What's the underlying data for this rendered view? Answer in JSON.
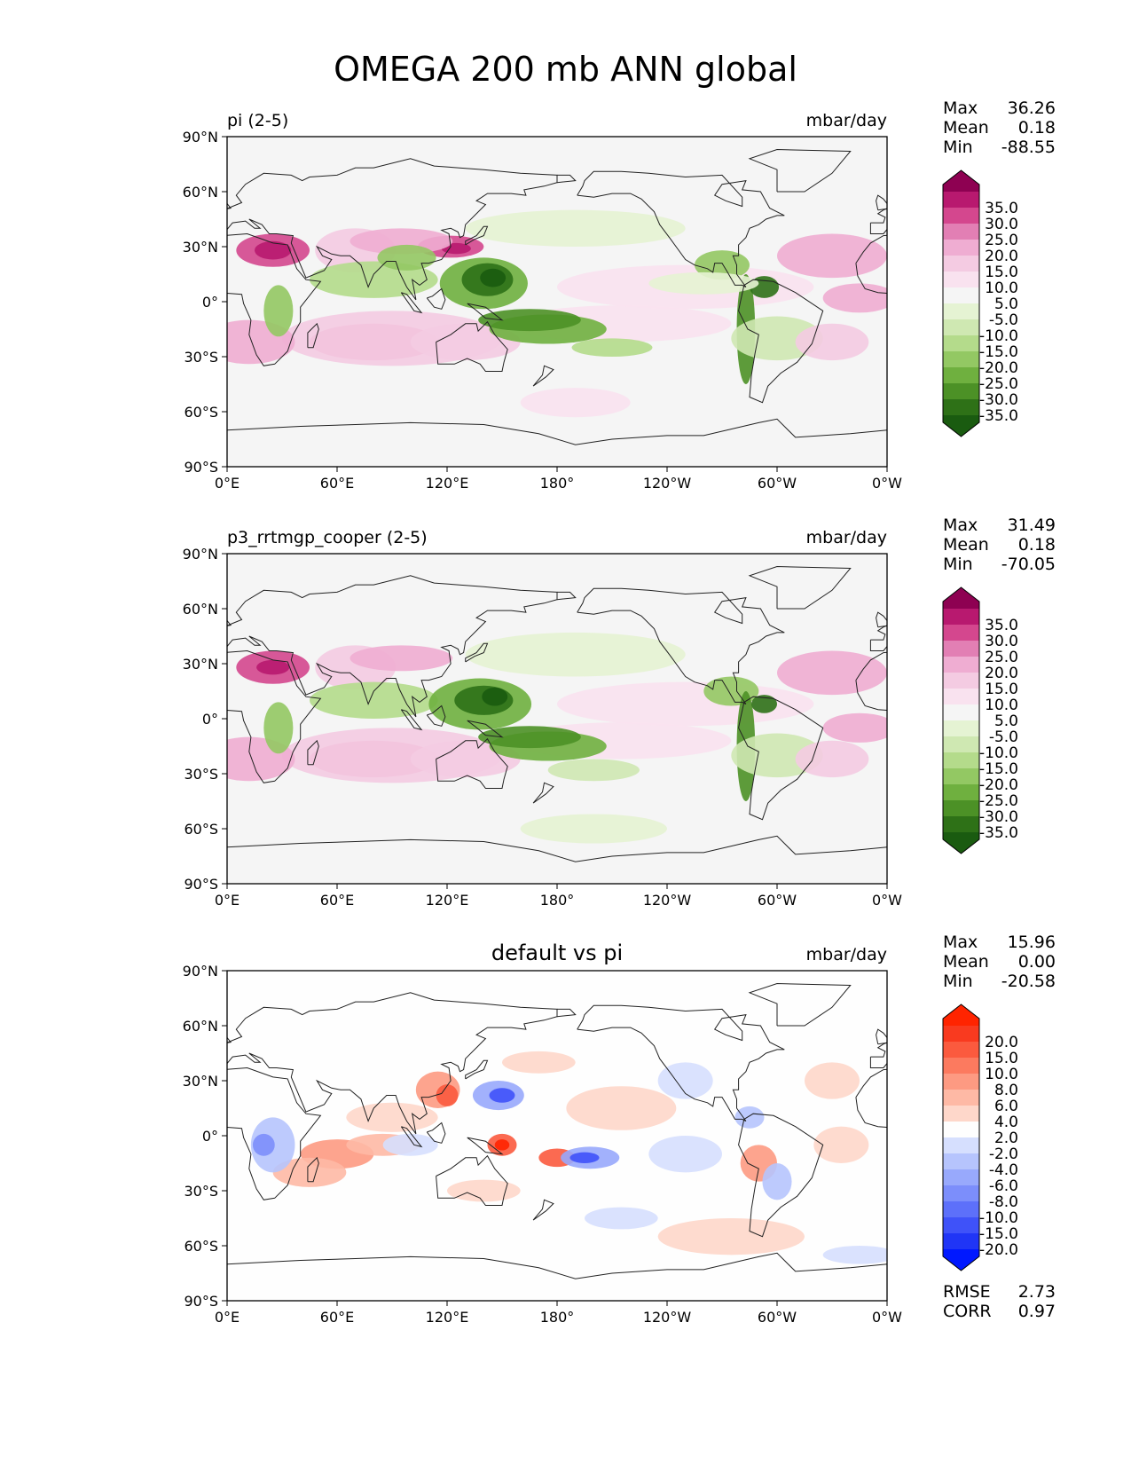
{
  "figure": {
    "title": "OMEGA 200 mb ANN global"
  },
  "axes": {
    "lon_ticks": [
      "0°E",
      "60°E",
      "120°E",
      "180°",
      "120°W",
      "60°W",
      "0°W"
    ],
    "lat_ticks": [
      "90°N",
      "60°N",
      "30°N",
      "0°",
      "30°S",
      "60°S",
      "90°S"
    ]
  },
  "stat_labels": {
    "max": "Max",
    "mean": "Mean",
    "min": "Min",
    "rmse": "RMSE",
    "corr": "CORR"
  },
  "chart_data": [
    {
      "type": "heatmap",
      "title": "pi (2-5)",
      "units": "mbar/day",
      "xlim": [
        0,
        360
      ],
      "ylim": [
        -90,
        90
      ],
      "stats": {
        "max": "36.26",
        "mean": "0.18",
        "min": "-88.55"
      },
      "colorbar_labels": [
        "35.0",
        "30.0",
        "25.0",
        "20.0",
        "15.0",
        "10.0",
        "5.0",
        "-5.0",
        "-10.0",
        "-15.0",
        "-20.0",
        "-25.0",
        "-30.0",
        "-35.0"
      ],
      "colorbar_colors": [
        "#8e0152",
        "#b8196f",
        "#d4478e",
        "#e27fb4",
        "#efadd2",
        "#f4cbe2",
        "#f9e2ef",
        "#f5f5f5",
        "#e5f3d3",
        "#cfe8b2",
        "#b4db8b",
        "#93c863",
        "#6fb03f",
        "#4c9126",
        "#2e7117",
        "#1a5b10"
      ],
      "colormap": "diverging-pink-green",
      "features": [
        {
          "lon": [
            0,
            40
          ],
          "lat": [
            15,
            40
          ],
          "value": 25
        },
        {
          "lon": [
            110,
            135
          ],
          "lat": [
            22,
            36
          ],
          "value": 28
        },
        {
          "lon": [
            125,
            150
          ],
          "lat": [
            0,
            22
          ],
          "value": -35
        },
        {
          "lon": [
            140,
            200
          ],
          "lat": [
            -30,
            -5
          ],
          "value": -25
        },
        {
          "lon": [
            50,
            120
          ],
          "lat": [
            -35,
            -15
          ],
          "value": 15
        },
        {
          "lon": [
            280,
            295
          ],
          "lat": [
            -50,
            10
          ],
          "value": -30
        },
        {
          "lon": [
            15,
            35
          ],
          "lat": [
            -15,
            5
          ],
          "value": -20
        }
      ]
    },
    {
      "type": "heatmap",
      "title": "p3_rrtmgp_cooper (2-5)",
      "units": "mbar/day",
      "xlim": [
        0,
        360
      ],
      "ylim": [
        -90,
        90
      ],
      "stats": {
        "max": "31.49",
        "mean": "0.18",
        "min": "-70.05"
      },
      "colorbar_labels": [
        "35.0",
        "30.0",
        "25.0",
        "20.0",
        "15.0",
        "10.0",
        "5.0",
        "-5.0",
        "-10.0",
        "-15.0",
        "-20.0",
        "-25.0",
        "-30.0",
        "-35.0"
      ],
      "colorbar_colors": [
        "#8e0152",
        "#b8196f",
        "#d4478e",
        "#e27fb4",
        "#efadd2",
        "#f4cbe2",
        "#f9e2ef",
        "#f5f5f5",
        "#e5f3d3",
        "#cfe8b2",
        "#b4db8b",
        "#93c863",
        "#6fb03f",
        "#4c9126",
        "#2e7117",
        "#1a5b10"
      ],
      "colormap": "diverging-pink-green",
      "features": [
        {
          "lon": [
            0,
            40
          ],
          "lat": [
            15,
            40
          ],
          "value": 25
        },
        {
          "lon": [
            125,
            150
          ],
          "lat": [
            0,
            22
          ],
          "value": -35
        },
        {
          "lon": [
            140,
            200
          ],
          "lat": [
            -30,
            -5
          ],
          "value": -25
        },
        {
          "lon": [
            50,
            120
          ],
          "lat": [
            -35,
            -15
          ],
          "value": 15
        },
        {
          "lon": [
            280,
            295
          ],
          "lat": [
            -50,
            10
          ],
          "value": -30
        }
      ]
    },
    {
      "type": "heatmap",
      "title": "default vs pi",
      "units": "mbar/day",
      "xlim": [
        0,
        360
      ],
      "ylim": [
        -90,
        90
      ],
      "stats": {
        "max": "15.96",
        "mean": "0.00",
        "min": "-20.58",
        "rmse": "2.73",
        "corr": "0.97"
      },
      "colorbar_labels": [
        "20.0",
        "15.0",
        "10.0",
        "8.0",
        "6.0",
        "4.0",
        "2.0",
        "-2.0",
        "-4.0",
        "-6.0",
        "-8.0",
        "-10.0",
        "-15.0",
        "-20.0"
      ],
      "colorbar_colors": [
        "#ff2400",
        "#f93a1f",
        "#fb5a3e",
        "#fc7a5f",
        "#fd9a82",
        "#feb9a5",
        "#fed7ca",
        "#fefefe",
        "#d6dffe",
        "#b6c4fd",
        "#98a9fc",
        "#7c8efb",
        "#5d70fa",
        "#3f52f9",
        "#2035f6",
        "#0018ff"
      ],
      "colormap": "diverging-red-blue",
      "features": [
        {
          "lon": [
            110,
            130
          ],
          "lat": [
            10,
            35
          ],
          "value": 10
        },
        {
          "lon": [
            135,
            155
          ],
          "lat": [
            15,
            30
          ],
          "value": -10
        },
        {
          "lon": [
            140,
            160
          ],
          "lat": [
            -10,
            5
          ],
          "value": 10
        },
        {
          "lon": [
            170,
            185
          ],
          "lat": [
            -15,
            -5
          ],
          "value": 12
        },
        {
          "lon": [
            185,
            215
          ],
          "lat": [
            -15,
            -5
          ],
          "value": -10
        },
        {
          "lon": [
            285,
            300
          ],
          "lat": [
            -30,
            -10
          ],
          "value": 8
        },
        {
          "lon": [
            15,
            40
          ],
          "lat": [
            -25,
            5
          ],
          "value": -6
        }
      ]
    }
  ]
}
